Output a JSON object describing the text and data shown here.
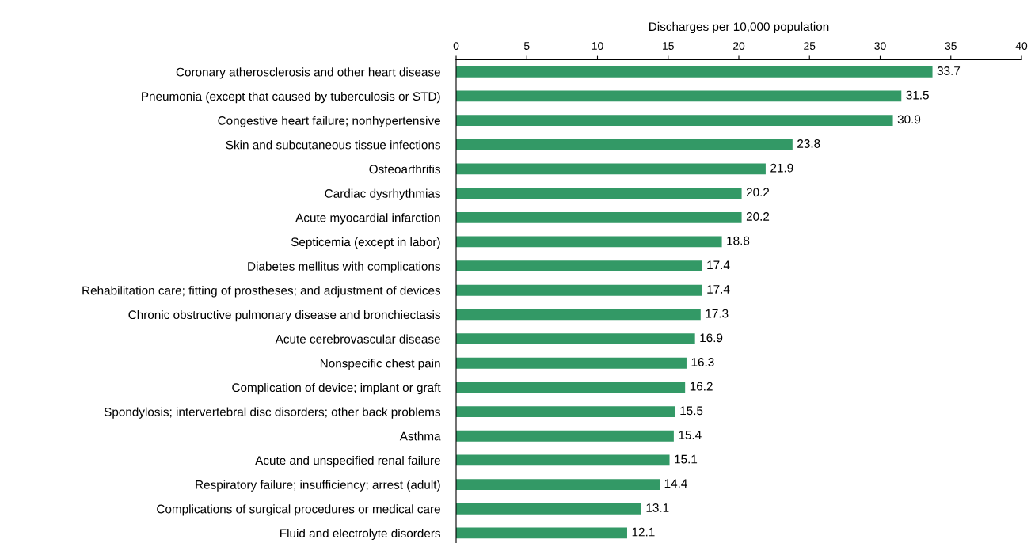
{
  "chart_data": {
    "type": "bar",
    "orientation": "horizontal",
    "xlabel": "Discharges per 10,000 population",
    "categories": [
      "Coronary atherosclerosis and other heart disease",
      "Pneumonia (except that caused by tuberculosis or STD)",
      "Congestive heart failure; nonhypertensive",
      "Skin and subcutaneous tissue infections",
      "Osteoarthritis",
      "Cardiac dysrhythmias",
      "Acute myocardial infarction",
      "Septicemia (except in labor)",
      "Diabetes mellitus with complications",
      "Rehabilitation care; fitting of prostheses; and adjustment of devices",
      "Chronic obstructive pulmonary disease and bronchiectasis",
      "Acute cerebrovascular disease",
      "Nonspecific chest pain",
      "Complication of device; implant or graft",
      "Spondylosis; intervertebral disc disorders; other back problems",
      "Asthma",
      "Acute and unspecified renal failure",
      "Respiratory failure; insufficiency; arrest (adult)",
      "Complications of surgical procedures or medical care",
      "Fluid and electrolyte disorders"
    ],
    "values": [
      33.7,
      31.5,
      30.9,
      23.8,
      21.9,
      20.2,
      20.2,
      18.8,
      17.4,
      17.4,
      17.3,
      16.9,
      16.3,
      16.2,
      15.5,
      15.4,
      15.1,
      14.4,
      13.1,
      12.1
    ],
    "color": "#339966",
    "xlim": [
      0,
      40
    ],
    "xticks": [
      0,
      5,
      10,
      15,
      20,
      25,
      30,
      35,
      40
    ],
    "data_labels": true,
    "grid": false,
    "legend": false
  }
}
